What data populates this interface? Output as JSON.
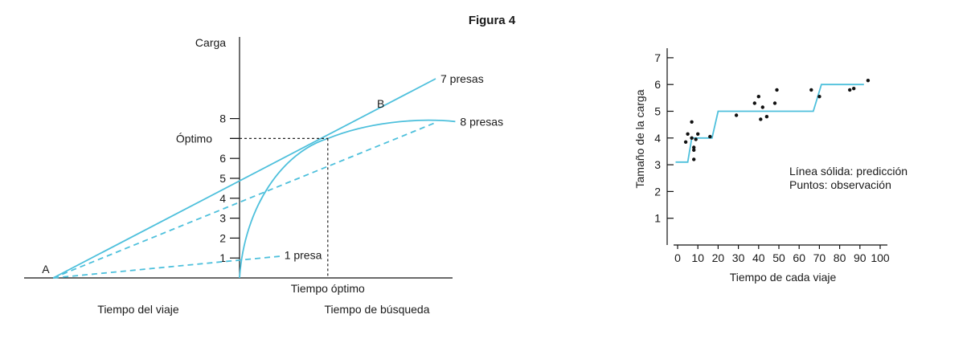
{
  "figure_title": "Figura 4",
  "colors": {
    "curve": "#4ec0dc",
    "axis": "#111111",
    "text": "#1a1a1a",
    "dots": "#111111"
  },
  "chart_data": [
    {
      "type": "line",
      "title": "",
      "ylabel": "Carga",
      "xlabel_left": "Tiempo del viaje",
      "xlabel_right": "Tiempo de búsqueda",
      "x_marker_label": "Tiempo óptimo",
      "y_marker_label": "Óptimo",
      "y_marker_value": 7,
      "point_labels": {
        "A": "A",
        "B": "B"
      },
      "yticks": [
        1,
        2,
        3,
        4,
        5,
        6,
        7,
        8
      ],
      "y_tick_labels_shown": [
        1,
        2,
        3,
        4,
        5,
        6,
        8
      ],
      "ylim": [
        0,
        8
      ],
      "x_optimum": 4.5,
      "x_point_A": -9.5,
      "series": [
        {
          "name": "7 presas",
          "style": "solid",
          "shape": "tangent",
          "x": [
            -9.5,
            10
          ],
          "y": [
            0,
            10
          ]
        },
        {
          "name": "8 presas",
          "style": "solid",
          "shape": "gain-curve",
          "x": [
            0,
            2,
            4.5,
            6,
            8,
            9,
            11
          ],
          "y": [
            0,
            4.6,
            7,
            7.7,
            7.95,
            7.95,
            7.85
          ]
        },
        {
          "name": "",
          "style": "dashed",
          "x": [
            -9.5,
            10
          ],
          "y": [
            0,
            7.8
          ]
        },
        {
          "name": "1 presa",
          "style": "dashed",
          "x": [
            -9.5,
            2.2
          ],
          "y": [
            0,
            1.1
          ]
        }
      ]
    },
    {
      "type": "scatter",
      "title": "",
      "xlabel": "Tiempo de cada viaje",
      "ylabel": "Tamaño de la carga",
      "xlim": [
        0,
        100
      ],
      "ylim": [
        0,
        7
      ],
      "xticks": [
        0,
        10,
        20,
        30,
        40,
        50,
        60,
        70,
        80,
        90,
        100
      ],
      "yticks": [
        1,
        2,
        3,
        4,
        5,
        6,
        7
      ],
      "legend_text": [
        "Línea sólida: predicción",
        "Puntos: observación"
      ],
      "prediction": {
        "x": [
          -1,
          5,
          7,
          17,
          20,
          67,
          71,
          92
        ],
        "y": [
          3.1,
          3.1,
          4,
          4,
          5,
          5,
          6,
          6
        ]
      },
      "observations": {
        "x": [
          4,
          5,
          7,
          7,
          8,
          8,
          8,
          9,
          10,
          16,
          29,
          38,
          40,
          41,
          42,
          44,
          48,
          49,
          66,
          70,
          85,
          87,
          94
        ],
        "y": [
          3.85,
          4.15,
          4.6,
          4.0,
          3.55,
          3.65,
          3.2,
          3.95,
          4.15,
          4.05,
          4.85,
          5.3,
          5.55,
          4.7,
          5.15,
          4.8,
          5.3,
          5.8,
          5.8,
          5.55,
          5.8,
          5.85,
          6.15
        ]
      }
    }
  ]
}
